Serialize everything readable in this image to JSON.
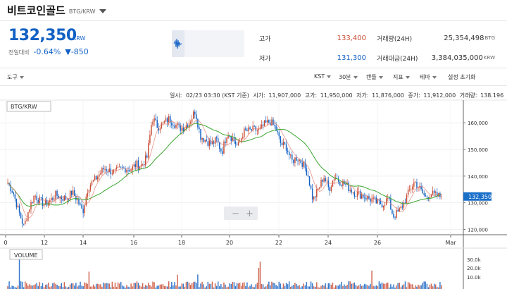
{
  "header": {
    "coin_name": "비트코인골드",
    "pair": "BTG/KRW"
  },
  "price": {
    "current": "132,350",
    "unit": "KRW",
    "change_label": "전일대비",
    "change_pct": "-0.64%",
    "change_abs": "▼-850"
  },
  "stats": {
    "high_label": "고가",
    "high": "133,400",
    "low_label": "저가",
    "low": "131,300",
    "vol_label": "거래량(24H)",
    "vol": "25,354,498",
    "vol_unit": "BTG",
    "amt_label": "거래대금(24H)",
    "amt": "3,384,035,000",
    "amt_unit": "KRW"
  },
  "toolbar": {
    "tools": "도구",
    "tz": "KST",
    "interval": "30분",
    "candle": "캔들",
    "indicator": "지표",
    "theme": "테마",
    "reset": "설정 초기화"
  },
  "ohlc": {
    "date_label": "일시:",
    "date": "02/23 03:30 (KST 기준)",
    "open_label": "시가:",
    "open": "11,907,000",
    "high_label": "고가:",
    "high": "11,950,000",
    "low_label": "저가:",
    "low": "11,876,000",
    "close_label": "종가:",
    "close": "11,912,000",
    "volume_label": "거래량:",
    "volume": "138.196"
  },
  "chart_panel": {
    "symbol": "BTG/KRW",
    "current_tag": "132,350",
    "zoom_out": "−",
    "zoom_in": "+"
  },
  "volume_panel": {
    "label": "VOLUME",
    "ticks": [
      "30.0k",
      "20.0k",
      "10.0k"
    ]
  },
  "colors": {
    "up": "#c84a31",
    "down": "#1261c4",
    "ma": "#3aa62f",
    "ma2": "#e07a6a"
  },
  "chart_data": {
    "type": "candlestick",
    "x_ticks": [
      "0",
      "12",
      "14",
      "16",
      "18",
      "20",
      "22",
      "24",
      "26",
      "Mar"
    ],
    "y_ticks": [
      120000,
      130000,
      140000,
      150000,
      160000
    ],
    "y_tick_labels": [
      "120,000",
      "130,000",
      "140,000",
      "150,000",
      "160,000"
    ],
    "ylim": [
      118000,
      168000
    ],
    "closes": [
      137500,
      134000,
      127000,
      121000,
      128000,
      133000,
      130500,
      129500,
      131000,
      133000,
      132000,
      131500,
      134000,
      131000,
      126500,
      136000,
      138000,
      140500,
      143000,
      142000,
      141500,
      142500,
      143000,
      142500,
      144500,
      144000,
      147000,
      162000,
      158500,
      159500,
      161500,
      160000,
      158000,
      158500,
      160500,
      164500,
      155000,
      153500,
      152000,
      153500,
      149000,
      156500,
      154000,
      151000,
      156500,
      157000,
      157500,
      157000,
      159500,
      160500,
      158000,
      152000,
      151000,
      145500,
      147000,
      145000,
      141000,
      131000,
      135000,
      140000,
      135000,
      140000,
      138000,
      137000,
      135000,
      133500,
      133000,
      132000,
      131000,
      130000,
      129500,
      131500,
      125000,
      126500,
      130000,
      134500,
      138000,
      135000,
      132000,
      133500,
      132500,
      132350
    ]
  }
}
